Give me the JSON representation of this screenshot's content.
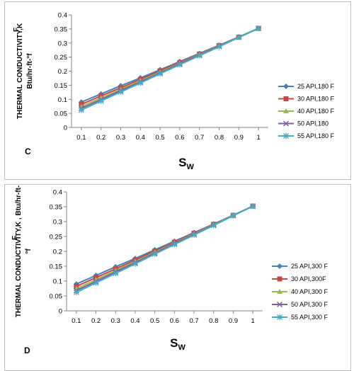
{
  "chart_data": [
    {
      "type": "line",
      "panel_label": "C",
      "ylabel_lines": [
        "THERMAL CONDUCTIVITY,K",
        "Btu/hr-ft-°f"
      ],
      "ylabel_sub": "F",
      "xlabel": "S",
      "xlabel_sub": "W",
      "x": [
        0.1,
        0.2,
        0.3,
        0.4,
        0.5,
        0.6,
        0.7,
        0.8,
        0.9,
        1
      ],
      "x_ticks": [
        "0.1",
        "0.2",
        "0.3",
        "0.4",
        "0.5",
        "0.6",
        "0.7",
        "0.8",
        "0.9",
        "1"
      ],
      "ylim": [
        0,
        0.4
      ],
      "y_ticks": [
        "0",
        "0.05",
        "0.1",
        "0.15",
        "0.2",
        "0.25",
        "0.3",
        "0.35",
        "0.4"
      ],
      "grid": false,
      "legend_position": "right",
      "series": [
        {
          "name": "25 API,180 F",
          "color": "#4a7ebb",
          "marker": "diamond",
          "values": [
            0.09,
            0.119,
            0.148,
            0.176,
            0.205,
            0.234,
            0.263,
            0.292,
            0.322,
            0.352
          ]
        },
        {
          "name": "30 API,180 F",
          "color": "#be4b48",
          "marker": "square",
          "values": [
            0.082,
            0.112,
            0.141,
            0.171,
            0.201,
            0.231,
            0.261,
            0.291,
            0.321,
            0.352
          ]
        },
        {
          "name": "40 API,180 F",
          "color": "#98b954",
          "marker": "triangle",
          "values": [
            0.074,
            0.105,
            0.135,
            0.166,
            0.197,
            0.228,
            0.259,
            0.29,
            0.321,
            0.352
          ]
        },
        {
          "name": "50 API,180",
          "color": "#7d60a0",
          "marker": "x",
          "values": [
            0.068,
            0.099,
            0.131,
            0.162,
            0.194,
            0.226,
            0.257,
            0.289,
            0.32,
            0.352
          ]
        },
        {
          "name": "55 API,180 F",
          "color": "#46aac5",
          "marker": "star",
          "values": [
            0.062,
            0.094,
            0.126,
            0.158,
            0.191,
            0.223,
            0.255,
            0.287,
            0.32,
            0.352
          ]
        }
      ]
    },
    {
      "type": "line",
      "panel_label": "D",
      "ylabel_lines": [
        "THERMAL CONDUCTIVITY,K , Btu/hr-ft-",
        "°f"
      ],
      "ylabel_sub": "F",
      "xlabel": "S",
      "xlabel_sub": "W",
      "x": [
        0.1,
        0.2,
        0.3,
        0.4,
        0.5,
        0.6,
        0.7,
        0.8,
        0.9,
        1
      ],
      "x_ticks": [
        "0.1",
        "0.2",
        "0.3",
        "0.4",
        "0.5",
        "0.6",
        "0.7",
        "0.8",
        "0.9",
        "1"
      ],
      "ylim": [
        0,
        0.4
      ],
      "y_ticks": [
        "0",
        "0.05",
        "0.1",
        "0.15",
        "0.2",
        "0.25",
        "0.3",
        "0.35",
        "0.4"
      ],
      "grid": false,
      "legend_position": "right",
      "series": [
        {
          "name": "25 API,300 F",
          "color": "#4a7ebb",
          "marker": "diamond",
          "values": [
            0.09,
            0.119,
            0.148,
            0.176,
            0.205,
            0.234,
            0.263,
            0.292,
            0.322,
            0.352
          ]
        },
        {
          "name": "30 API,300F",
          "color": "#be4b48",
          "marker": "square",
          "values": [
            0.082,
            0.112,
            0.141,
            0.171,
            0.201,
            0.231,
            0.261,
            0.291,
            0.321,
            0.352
          ]
        },
        {
          "name": "40 API,300 F",
          "color": "#98b954",
          "marker": "triangle",
          "values": [
            0.074,
            0.105,
            0.135,
            0.166,
            0.197,
            0.228,
            0.259,
            0.29,
            0.321,
            0.352
          ]
        },
        {
          "name": "50 API,300 F",
          "color": "#7d60a0",
          "marker": "x",
          "values": [
            0.068,
            0.099,
            0.131,
            0.162,
            0.194,
            0.226,
            0.257,
            0.289,
            0.32,
            0.352
          ]
        },
        {
          "name": "55 API,300 F",
          "color": "#46aac5",
          "marker": "star",
          "values": [
            0.062,
            0.094,
            0.126,
            0.158,
            0.191,
            0.223,
            0.255,
            0.287,
            0.32,
            0.352
          ]
        }
      ]
    }
  ]
}
